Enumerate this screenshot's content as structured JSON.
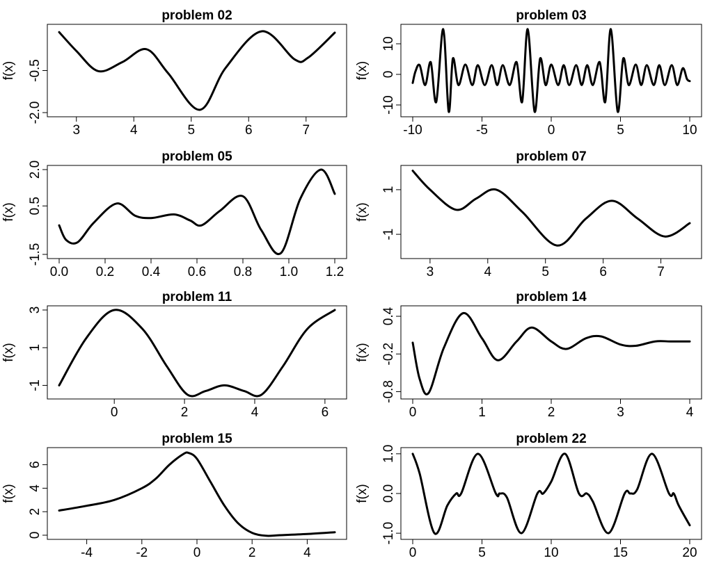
{
  "chart_data": [
    {
      "type": "line",
      "title": "problem 02",
      "ylabel": "f(x)",
      "x_ticks": [
        3,
        4,
        5,
        6,
        7
      ],
      "x_tick_labels": [
        "3",
        "4",
        "5",
        "6",
        "7"
      ],
      "y_ticks": [
        -0.5,
        -2.0
      ],
      "y_tick_labels": [
        "-0.5",
        "-2.0"
      ],
      "xlim": [
        2.7,
        7.5
      ],
      "ylim": [
        -2.0,
        1.0
      ],
      "series": [
        {
          "x": [
            2.7,
            3.0,
            3.38,
            3.8,
            4.22,
            4.6,
            5.15,
            5.6,
            6.23,
            6.8,
            7.03,
            7.5
          ],
          "y": [
            0.87,
            0.2,
            -0.52,
            -0.2,
            0.26,
            -0.6,
            -1.9,
            -0.4,
            0.9,
            -0.1,
            -0.05,
            0.85
          ]
        }
      ]
    },
    {
      "type": "line",
      "title": "problem 03",
      "ylabel": "f(x)",
      "x_ticks": [
        -10,
        -5,
        0,
        5,
        10
      ],
      "x_tick_labels": [
        "-10",
        "-5",
        "0",
        "5",
        "10"
      ],
      "y_ticks": [
        10,
        0,
        -10
      ],
      "y_tick_labels": [
        "10",
        "0",
        "-10"
      ],
      "xlim": [
        -10,
        10
      ],
      "ylim": [
        -12.5,
        15
      ],
      "series": [
        {
          "x": [
            -10,
            -9.8,
            -9.5,
            -9.1,
            -8.7,
            -8.3,
            -7.8,
            -7.4,
            -7.1,
            -6.7,
            -6.2,
            -5.7,
            -5.3,
            -4.8,
            -4.3,
            -3.9,
            -3.5,
            -3.0,
            -2.5,
            -2.1,
            -1.7,
            -1.2,
            -0.8,
            -0.4,
            0.0,
            0.5,
            0.9,
            1.3,
            1.8,
            2.2,
            2.6,
            3.0,
            3.5,
            3.9,
            4.3,
            4.8,
            5.2,
            5.6,
            6.1,
            6.5,
            6.9,
            7.4,
            7.8,
            8.2,
            8.7,
            9.1,
            9.5,
            9.8,
            10
          ],
          "y": [
            -2.8,
            1.0,
            3.0,
            -3.5,
            4.0,
            -9.0,
            14.8,
            -12.2,
            5.2,
            -3.5,
            3.2,
            -3.5,
            3.0,
            -3.5,
            3.0,
            -3.5,
            3.0,
            -3.5,
            4.0,
            -9.0,
            14.8,
            -12.2,
            5.2,
            -3.5,
            3.2,
            -3.5,
            3.0,
            -3.5,
            3.0,
            -3.5,
            3.0,
            -3.5,
            4.0,
            -9.0,
            14.8,
            -12.2,
            5.2,
            -3.5,
            3.2,
            -3.5,
            3.0,
            -3.5,
            3.0,
            -3.5,
            3.0,
            -3.5,
            2.0,
            -1.5,
            -2.2
          ]
        }
      ]
    },
    {
      "type": "line",
      "title": "problem 05",
      "ylabel": "f(x)",
      "x_ticks": [
        0,
        0.2,
        0.4,
        0.6,
        0.8,
        1.0,
        1.2
      ],
      "x_tick_labels": [
        "0.0",
        "0.2",
        "0.4",
        "0.6",
        "0.8",
        "1.0",
        "1.2"
      ],
      "y_ticks": [
        2.0,
        0.5,
        -1.5
      ],
      "y_tick_labels": [
        "2.0",
        "0.5",
        "-1.5"
      ],
      "xlim": [
        0,
        1.2
      ],
      "ylim": [
        -1.5,
        2.0
      ],
      "series": [
        {
          "x": [
            0,
            0.03,
            0.08,
            0.15,
            0.25,
            0.33,
            0.4,
            0.5,
            0.57,
            0.62,
            0.7,
            0.8,
            0.88,
            0.965,
            1.05,
            1.14,
            1.2
          ],
          "y": [
            -0.3,
            -0.9,
            -1.0,
            -0.2,
            0.6,
            0.1,
            0.0,
            0.15,
            -0.1,
            -0.3,
            0.3,
            0.9,
            -0.5,
            -1.45,
            0.8,
            2.0,
            1.0
          ]
        }
      ]
    },
    {
      "type": "line",
      "title": "problem 07",
      "ylabel": "f(x)",
      "x_ticks": [
        3,
        4,
        5,
        6,
        7
      ],
      "x_tick_labels": [
        "3",
        "4",
        "5",
        "6",
        "7"
      ],
      "y_ticks": [
        1,
        -1
      ],
      "y_tick_labels": [
        "1",
        "-1"
      ],
      "xlim": [
        2.7,
        7.5
      ],
      "ylim": [
        -1.9,
        1.9
      ],
      "series": [
        {
          "x": [
            2.7,
            3.0,
            3.45,
            3.8,
            4.15,
            4.6,
            5.2,
            5.7,
            6.15,
            6.6,
            7.07,
            7.5
          ],
          "y": [
            1.85,
            1.0,
            0.1,
            0.6,
            1.0,
            0.0,
            -1.5,
            -0.3,
            0.5,
            -0.3,
            -1.1,
            -0.5
          ]
        }
      ]
    },
    {
      "type": "line",
      "title": "problem 11",
      "ylabel": "f(x)",
      "x_ticks": [
        0,
        2,
        4,
        6
      ],
      "x_tick_labels": [
        "0",
        "2",
        "4",
        "6"
      ],
      "y_ticks": [
        3,
        1,
        -1
      ],
      "y_tick_labels": [
        "3",
        "1",
        "-1"
      ],
      "xlim": [
        -1.57,
        6.28
      ],
      "ylim": [
        -1.5,
        3.0
      ],
      "series": [
        {
          "x": [
            -1.57,
            -0.8,
            0.0,
            0.8,
            1.5,
            2.09,
            2.6,
            3.14,
            3.7,
            4.19,
            4.8,
            5.5,
            6.28
          ],
          "y": [
            -1.0,
            1.5,
            3.0,
            2.0,
            0.0,
            -1.5,
            -1.3,
            -1.0,
            -1.3,
            -1.5,
            0.0,
            2.0,
            3.0
          ]
        }
      ]
    },
    {
      "type": "line",
      "title": "problem 14",
      "ylabel": "f(x)",
      "x_ticks": [
        0,
        1,
        2,
        3,
        4
      ],
      "x_tick_labels": [
        "0",
        "1",
        "2",
        "3",
        "4"
      ],
      "y_ticks": [
        0.4,
        -0.2,
        -0.8
      ],
      "y_tick_labels": [
        "0.4",
        "-0.2",
        "-0.8"
      ],
      "xlim": [
        0,
        4
      ],
      "ylim": [
        -0.85,
        0.5
      ],
      "series": [
        {
          "x": [
            0,
            0.1,
            0.23,
            0.45,
            0.73,
            1.0,
            1.23,
            1.5,
            1.72,
            2.0,
            2.22,
            2.5,
            2.72,
            3.0,
            3.22,
            3.5,
            3.72,
            4.0
          ],
          "y": [
            -0.02,
            -0.6,
            -0.82,
            -0.1,
            0.45,
            0.05,
            -0.3,
            0.0,
            0.22,
            0.0,
            -0.12,
            0.05,
            0.08,
            -0.05,
            -0.07,
            0.0,
            0.0,
            0.0
          ]
        }
      ]
    },
    {
      "type": "line",
      "title": "problem 15",
      "ylabel": "f(x)",
      "x_ticks": [
        -4,
        -2,
        0,
        2,
        4
      ],
      "x_tick_labels": [
        "-4",
        "-2",
        "0",
        "2",
        "4"
      ],
      "y_ticks": [
        0,
        2,
        4,
        6
      ],
      "y_tick_labels": [
        "0",
        "2",
        "4",
        "6"
      ],
      "xlim": [
        -5,
        5
      ],
      "ylim": [
        0,
        7.1
      ],
      "series": [
        {
          "x": [
            -5,
            -4,
            -3,
            -2,
            -1.5,
            -1,
            -0.5,
            -0.3,
            0,
            0.5,
            1,
            1.5,
            2,
            2.5,
            3,
            4,
            5
          ],
          "y": [
            2.1,
            2.5,
            3.0,
            4.0,
            4.8,
            6.0,
            6.9,
            7.0,
            6.5,
            4.5,
            2.5,
            1.0,
            0.2,
            -0.05,
            0.0,
            0.1,
            0.25
          ]
        }
      ]
    },
    {
      "type": "line",
      "title": "problem 22",
      "ylabel": "f(x)",
      "x_ticks": [
        0,
        5,
        10,
        15,
        20
      ],
      "x_tick_labels": [
        "0",
        "5",
        "10",
        "15",
        "20"
      ],
      "y_ticks": [
        1.0,
        0.0,
        -1.0
      ],
      "y_tick_labels": [
        "1.0",
        "0.0",
        "-1.0"
      ],
      "xlim": [
        0,
        20
      ],
      "ylim": [
        -1.05,
        1.05
      ],
      "series": [
        {
          "x": [
            0,
            0.5,
            1.57,
            2.5,
            3.14,
            3.5,
            4.71,
            6.0,
            6.28,
            6.8,
            7.85,
            9.0,
            9.42,
            10.0,
            11.0,
            12.0,
            12.57,
            13.0,
            14.14,
            15.3,
            15.71,
            16.2,
            17.28,
            18.5,
            18.85,
            19.2,
            20.0
          ],
          "y": [
            1.0,
            0.5,
            -1.0,
            -0.3,
            0.0,
            0.0,
            1.0,
            0.0,
            0.0,
            -0.1,
            -1.0,
            0.0,
            0.0,
            0.3,
            1.0,
            0.0,
            0.0,
            -0.2,
            -1.0,
            0.0,
            0.0,
            0.1,
            1.0,
            0.0,
            0.0,
            -0.3,
            -0.8
          ]
        }
      ]
    }
  ]
}
